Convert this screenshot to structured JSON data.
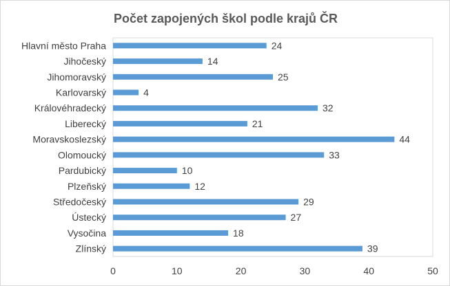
{
  "chart_data": {
    "type": "bar",
    "orientation": "horizontal",
    "title": "Počet zapojených škol podle krajů ČR",
    "categories": [
      "Hlavní město Praha",
      "Jihočeský",
      "Jihomoravský",
      "Karlovarský",
      "Královéhradecký",
      "Liberecký",
      "Moravskoslezský",
      "Olomoucký",
      "Pardubický",
      "Plzeňský",
      "Středočeský",
      "Ústecký",
      "Vysočina",
      "Zlínský"
    ],
    "values": [
      24,
      14,
      25,
      4,
      32,
      21,
      44,
      33,
      10,
      12,
      29,
      27,
      18,
      39
    ],
    "xlim": [
      0,
      50
    ],
    "xticks": [
      0,
      10,
      20,
      30,
      40,
      50
    ],
    "data_labels": true,
    "grid": false,
    "legend": "none",
    "bar_color": "#5b9bd5"
  }
}
